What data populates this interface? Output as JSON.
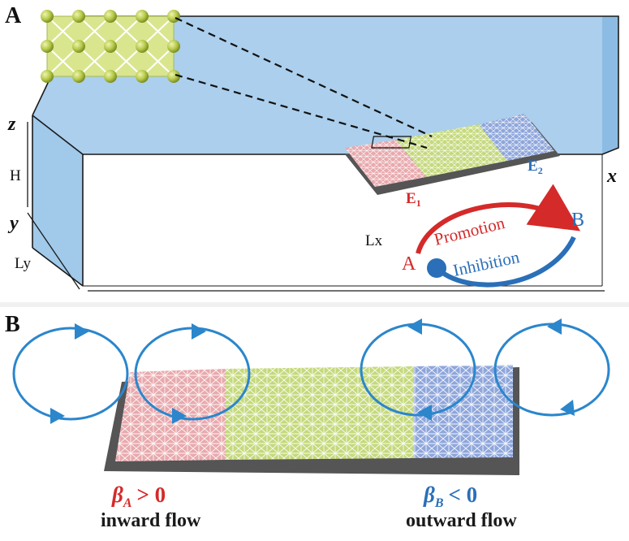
{
  "panel_a": {
    "label": "A",
    "axes": {
      "z": "z",
      "y": "y",
      "x": "x",
      "height": "H",
      "width": "Ly",
      "length": "Lx"
    },
    "electrodes": {
      "e1": "E",
      "e1_sub": "1",
      "e2": "E",
      "e2_sub": "2"
    },
    "reaction": {
      "species_a": "A",
      "species_b": "B",
      "promotion": "Promotion",
      "inhibition": "Inhibition"
    }
  },
  "panel_b": {
    "label": "B",
    "beta_a": {
      "symbol": "β",
      "sub": "A",
      "relation": "> 0"
    },
    "beta_b": {
      "symbol": "β",
      "sub": "B",
      "relation": "< 0"
    },
    "inward_flow": "inward flow",
    "outward_flow": "outward flow"
  },
  "colors": {
    "pink": "#e8a9ad",
    "green": "#c5d97c",
    "blue": "#8ea6db",
    "channel": "#8fbfe6",
    "red_text": "#d42a2a",
    "blue_text": "#2a6fb8",
    "arrow_blue": "#2b86cc"
  }
}
